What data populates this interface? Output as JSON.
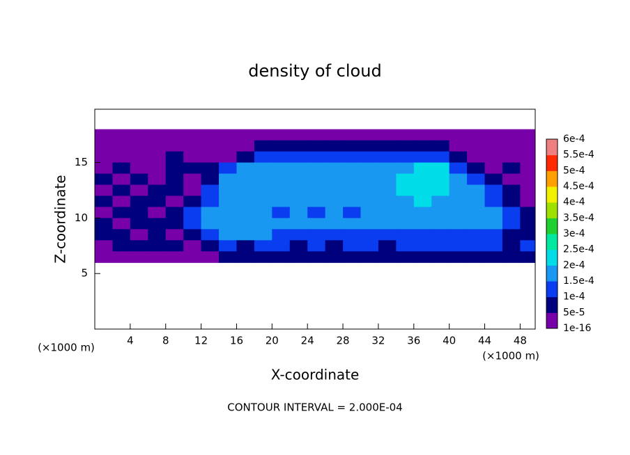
{
  "chart_data": {
    "type": "contour",
    "title": "density of cloud",
    "x_label": "X-coordinate",
    "y_label": "Z-coordinate",
    "x_unit": "(×1000 m)",
    "y_unit": "(×1000 m)",
    "footer": "CONTOUR INTERVAL = 2.000E-04",
    "xlim": [
      0,
      49.7
    ],
    "ylim": [
      0,
      19.8
    ],
    "xticks": [
      4,
      8,
      12,
      16,
      20,
      24,
      28,
      32,
      36,
      40,
      44,
      48
    ],
    "yticks": [
      5,
      10,
      15
    ],
    "x": [
      1,
      3,
      5,
      7,
      9,
      11,
      13,
      15,
      17,
      19,
      21,
      23,
      25,
      27,
      29,
      31,
      33,
      35,
      37,
      39,
      41,
      43,
      45,
      47,
      49
    ],
    "y": [
      17.5,
      16.5,
      15.5,
      14.5,
      13.5,
      12.5,
      11.5,
      10.5,
      9.5,
      8.5,
      7.5,
      6.5
    ],
    "z": [
      [
        2e-05,
        2e-05,
        2e-05,
        2e-05,
        2e-05,
        2e-05,
        2e-05,
        2e-05,
        2e-05,
        2e-05,
        2e-05,
        2e-05,
        2e-05,
        2e-05,
        2e-05,
        2e-05,
        2e-05,
        2e-05,
        2e-05,
        2e-05,
        2e-05,
        2e-05,
        2e-05,
        2e-05,
        2e-05
      ],
      [
        2e-05,
        2e-05,
        2e-05,
        2e-05,
        2e-05,
        2e-05,
        2e-05,
        2e-05,
        2e-05,
        7e-05,
        7e-05,
        7e-05,
        7e-05,
        7e-05,
        7e-05,
        7e-05,
        7e-05,
        7e-05,
        7e-05,
        7e-05,
        2e-05,
        2e-05,
        2e-05,
        2e-05,
        2e-05
      ],
      [
        2e-05,
        2e-05,
        2e-05,
        2e-05,
        7e-05,
        2e-05,
        2e-05,
        2e-05,
        7e-05,
        0.00012,
        0.00012,
        0.00012,
        0.00012,
        0.00012,
        0.00012,
        0.00012,
        0.00012,
        0.00012,
        0.00012,
        0.00012,
        7e-05,
        2e-05,
        2e-05,
        2e-05,
        2e-05
      ],
      [
        2e-05,
        7e-05,
        2e-05,
        2e-05,
        7e-05,
        7e-05,
        7e-05,
        0.00012,
        0.00016,
        0.00016,
        0.00016,
        0.00016,
        0.00016,
        0.00016,
        0.00016,
        0.00016,
        0.00016,
        0.00016,
        0.00021,
        0.00021,
        0.00012,
        7e-05,
        2e-05,
        7e-05,
        2e-05
      ],
      [
        7e-05,
        2e-05,
        7e-05,
        2e-05,
        7e-05,
        2e-05,
        7e-05,
        0.00016,
        0.00016,
        0.00016,
        0.00016,
        0.00016,
        0.00016,
        0.00016,
        0.00016,
        0.00016,
        0.00016,
        0.00021,
        0.00021,
        0.00021,
        0.00016,
        0.00012,
        7e-05,
        2e-05,
        2e-05
      ],
      [
        2e-05,
        7e-05,
        2e-05,
        7e-05,
        7e-05,
        2e-05,
        0.00012,
        0.00016,
        0.00016,
        0.00016,
        0.00016,
        0.00016,
        0.00016,
        0.00016,
        0.00016,
        0.00016,
        0.00016,
        0.00021,
        0.00021,
        0.00021,
        0.00016,
        0.00016,
        0.00012,
        7e-05,
        2e-05
      ],
      [
        7e-05,
        2e-05,
        7e-05,
        7e-05,
        2e-05,
        7e-05,
        0.00012,
        0.00016,
        0.00016,
        0.00016,
        0.00016,
        0.00016,
        0.00016,
        0.00016,
        0.00016,
        0.00016,
        0.00016,
        0.00016,
        0.00021,
        0.00016,
        0.00016,
        0.00016,
        0.00012,
        7e-05,
        2e-05
      ],
      [
        2e-05,
        7e-05,
        7e-05,
        2e-05,
        7e-05,
        0.00012,
        0.00016,
        0.00016,
        0.00016,
        0.00016,
        0.00012,
        0.00016,
        0.00012,
        0.00016,
        0.00012,
        0.00016,
        0.00016,
        0.00016,
        0.00016,
        0.00016,
        0.00016,
        0.00016,
        0.00016,
        0.00012,
        7e-05
      ],
      [
        7e-05,
        2e-05,
        7e-05,
        7e-05,
        7e-05,
        0.00012,
        0.00016,
        0.00016,
        0.00016,
        0.00016,
        0.00016,
        0.00016,
        0.00016,
        0.00016,
        0.00016,
        0.00016,
        0.00016,
        0.00016,
        0.00016,
        0.00016,
        0.00016,
        0.00016,
        0.00016,
        0.00012,
        7e-05
      ],
      [
        7e-05,
        7e-05,
        2e-05,
        7e-05,
        2e-05,
        7e-05,
        0.00012,
        0.00016,
        0.00016,
        0.00016,
        0.00012,
        0.00012,
        0.00012,
        0.00012,
        0.00012,
        0.00012,
        0.00012,
        0.00012,
        0.00012,
        0.00012,
        0.00012,
        0.00012,
        0.00012,
        7e-05,
        7e-05
      ],
      [
        2e-05,
        7e-05,
        7e-05,
        7e-05,
        7e-05,
        2e-05,
        7e-05,
        0.00012,
        7e-05,
        0.00012,
        0.00012,
        7e-05,
        0.00012,
        7e-05,
        0.00012,
        0.00012,
        7e-05,
        0.00012,
        0.00012,
        0.00012,
        0.00012,
        0.00012,
        0.00012,
        7e-05,
        0.00012
      ],
      [
        2e-05,
        2e-05,
        2e-05,
        2e-05,
        2e-05,
        2e-05,
        2e-05,
        7e-05,
        7e-05,
        7e-05,
        7e-05,
        7e-05,
        7e-05,
        7e-05,
        7e-05,
        7e-05,
        7e-05,
        7e-05,
        7e-05,
        7e-05,
        7e-05,
        7e-05,
        7e-05,
        7e-05,
        7e-05
      ]
    ],
    "colorbar": {
      "levels": [
        {
          "value": 1e-16,
          "label": "1e-16"
        },
        {
          "value": 5e-05,
          "label": "5e-5"
        },
        {
          "value": 0.0001,
          "label": "1e-4"
        },
        {
          "value": 0.00015,
          "label": "1.5e-4"
        },
        {
          "value": 0.0002,
          "label": "2e-4"
        },
        {
          "value": 0.00025,
          "label": "2.5e-4"
        },
        {
          "value": 0.0003,
          "label": "3e-4"
        },
        {
          "value": 0.00035,
          "label": "3.5e-4"
        },
        {
          "value": 0.0004,
          "label": "4e-4"
        },
        {
          "value": 0.00045,
          "label": "4.5e-4"
        },
        {
          "value": 0.0005,
          "label": "5e-4"
        },
        {
          "value": 0.00055,
          "label": "5.5e-4"
        },
        {
          "value": 0.0006,
          "label": "6e-4"
        }
      ],
      "colors": [
        "#7800a8",
        "#00007c",
        "#0a3cf0",
        "#1898f0",
        "#00dce8",
        "#00e8a0",
        "#20d030",
        "#a0e000",
        "#f0f000",
        "#ffa000",
        "#ff2800",
        "#f08080"
      ]
    }
  }
}
